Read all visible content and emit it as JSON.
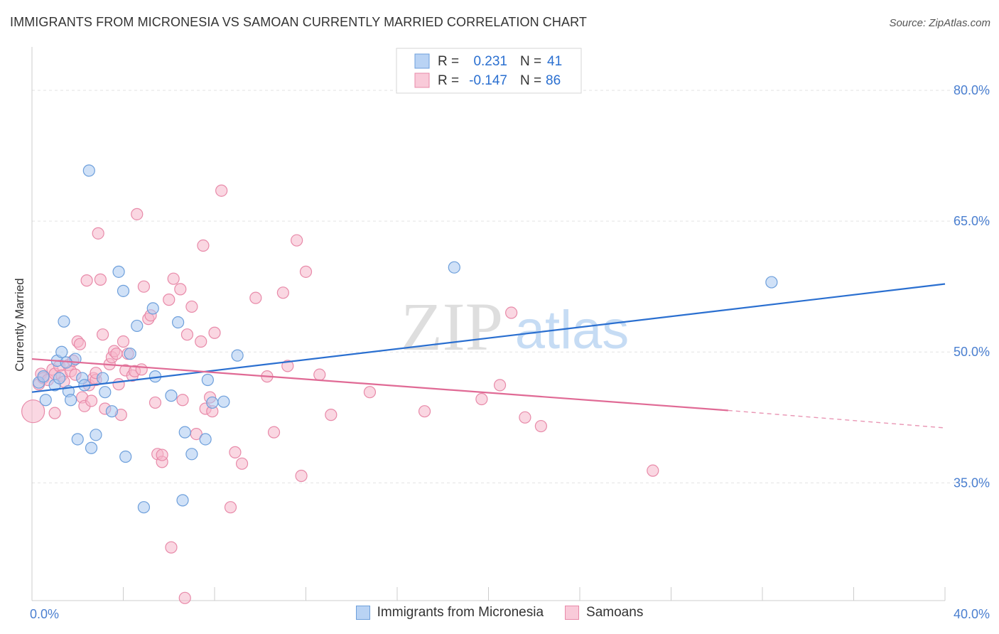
{
  "title": "IMMIGRANTS FROM MICRONESIA VS SAMOAN CURRENTLY MARRIED CORRELATION CHART",
  "source": "Source: ZipAtlas.com",
  "watermark": {
    "zip": "ZIP",
    "atlas": "atlas"
  },
  "colors": {
    "blue_fill": "#a9c8f0",
    "blue_stroke": "#6d9fdb",
    "blue_line": "#2a6fd0",
    "pink_fill": "#f6b6cb",
    "pink_stroke": "#e88aa9",
    "pink_line": "#e06a95",
    "tick_label": "#4a7fd0",
    "grid": "#e3e3e3"
  },
  "legend_box": {
    "rows": [
      {
        "r_label": "R =",
        "r_value": "0.231",
        "n_label": "N =",
        "n_value": "41",
        "color": "blue"
      },
      {
        "r_label": "R =",
        "r_value": "-0.147",
        "n_label": "N =",
        "n_value": "86",
        "color": "pink"
      }
    ]
  },
  "bottom_legend": [
    {
      "label": "Immigrants from Micronesia",
      "color": "blue"
    },
    {
      "label": "Samoans",
      "color": "pink"
    }
  ],
  "chart_data": {
    "type": "scatter",
    "title": "IMMIGRANTS FROM MICRONESIA VS SAMOAN CURRENTLY MARRIED CORRELATION CHART",
    "xlabel": "",
    "ylabel": "Currently Married",
    "xlim": [
      0,
      40
    ],
    "ylim": [
      21.5,
      84
    ],
    "x_tick_labels": [
      {
        "value": 0,
        "label": "0.0%"
      },
      {
        "value": 40,
        "label": "40.0%"
      }
    ],
    "y_tick_labels": [
      {
        "value": 80,
        "label": "80.0%"
      },
      {
        "value": 65,
        "label": "65.0%"
      },
      {
        "value": 50,
        "label": "50.0%"
      },
      {
        "value": 35,
        "label": "35.0%"
      }
    ],
    "grid": true,
    "legend_position": "top-center",
    "series": [
      {
        "name": "Immigrants from Micronesia",
        "color": "blue",
        "points": [
          [
            0.3,
            46.5
          ],
          [
            0.5,
            47.2
          ],
          [
            0.6,
            44.5
          ],
          [
            1.0,
            46.2
          ],
          [
            1.1,
            49.0
          ],
          [
            1.2,
            47.0
          ],
          [
            1.3,
            50.0
          ],
          [
            1.4,
            53.5
          ],
          [
            1.6,
            45.5
          ],
          [
            1.7,
            44.5
          ],
          [
            1.9,
            49.2
          ],
          [
            2.0,
            40.0
          ],
          [
            2.2,
            47.0
          ],
          [
            2.3,
            46.2
          ],
          [
            2.5,
            70.8
          ],
          [
            2.6,
            39.0
          ],
          [
            2.8,
            40.5
          ],
          [
            3.1,
            47.0
          ],
          [
            3.2,
            45.4
          ],
          [
            3.5,
            43.2
          ],
          [
            3.8,
            59.2
          ],
          [
            4.0,
            57.0
          ],
          [
            4.1,
            38.0
          ],
          [
            4.3,
            49.8
          ],
          [
            4.6,
            53.0
          ],
          [
            4.9,
            32.2
          ],
          [
            5.3,
            55.0
          ],
          [
            5.4,
            47.2
          ],
          [
            6.1,
            45.0
          ],
          [
            6.4,
            53.4
          ],
          [
            6.6,
            33.0
          ],
          [
            6.7,
            40.8
          ],
          [
            7.0,
            38.3
          ],
          [
            7.6,
            40.0
          ],
          [
            7.7,
            46.8
          ],
          [
            7.9,
            44.2
          ],
          [
            8.4,
            44.3
          ],
          [
            9.0,
            49.6
          ],
          [
            18.5,
            59.7
          ],
          [
            32.4,
            58.0
          ],
          [
            1.5,
            48.8
          ]
        ],
        "trend": {
          "x": [
            0,
            40
          ],
          "y": [
            45.4,
            57.8
          ]
        }
      },
      {
        "name": "Samoans",
        "color": "pink",
        "points": [
          [
            0.05,
            43.2
          ],
          [
            0.3,
            46.3
          ],
          [
            0.4,
            47.5
          ],
          [
            0.5,
            47.0
          ],
          [
            0.7,
            46.8
          ],
          [
            0.9,
            48.0
          ],
          [
            1.0,
            47.5
          ],
          [
            1.2,
            48.4
          ],
          [
            1.3,
            47.3
          ],
          [
            1.4,
            46.6
          ],
          [
            1.6,
            48.5
          ],
          [
            1.7,
            47.8
          ],
          [
            1.8,
            49.0
          ],
          [
            1.9,
            47.4
          ],
          [
            2.0,
            51.2
          ],
          [
            2.1,
            50.9
          ],
          [
            2.2,
            44.8
          ],
          [
            2.3,
            43.8
          ],
          [
            2.4,
            58.2
          ],
          [
            2.5,
            46.2
          ],
          [
            2.6,
            44.4
          ],
          [
            2.7,
            47.0
          ],
          [
            2.8,
            46.8
          ],
          [
            2.9,
            63.6
          ],
          [
            3.0,
            58.3
          ],
          [
            3.1,
            52.0
          ],
          [
            3.2,
            43.5
          ],
          [
            3.4,
            48.6
          ],
          [
            3.5,
            49.4
          ],
          [
            3.6,
            50.1
          ],
          [
            3.7,
            49.8
          ],
          [
            3.8,
            46.3
          ],
          [
            3.9,
            42.8
          ],
          [
            4.0,
            51.2
          ],
          [
            4.1,
            47.9
          ],
          [
            4.2,
            49.8
          ],
          [
            4.4,
            47.3
          ],
          [
            4.5,
            47.8
          ],
          [
            4.6,
            65.8
          ],
          [
            4.8,
            48.0
          ],
          [
            4.9,
            57.5
          ],
          [
            5.1,
            53.8
          ],
          [
            5.2,
            54.2
          ],
          [
            5.4,
            44.2
          ],
          [
            5.5,
            38.3
          ],
          [
            5.7,
            37.4
          ],
          [
            6.0,
            56.0
          ],
          [
            6.1,
            27.6
          ],
          [
            6.2,
            58.4
          ],
          [
            6.5,
            57.2
          ],
          [
            6.6,
            44.5
          ],
          [
            6.8,
            52.0
          ],
          [
            7.0,
            55.2
          ],
          [
            7.2,
            40.6
          ],
          [
            7.4,
            51.2
          ],
          [
            7.5,
            62.2
          ],
          [
            7.6,
            43.5
          ],
          [
            7.8,
            44.8
          ],
          [
            7.9,
            43.2
          ],
          [
            8.0,
            52.2
          ],
          [
            8.3,
            68.5
          ],
          [
            8.7,
            32.2
          ],
          [
            8.9,
            38.5
          ],
          [
            9.2,
            37.2
          ],
          [
            9.8,
            56.2
          ],
          [
            10.3,
            47.2
          ],
          [
            10.6,
            40.8
          ],
          [
            11.0,
            56.8
          ],
          [
            11.2,
            48.4
          ],
          [
            11.6,
            62.8
          ],
          [
            11.8,
            35.8
          ],
          [
            12.0,
            59.2
          ],
          [
            12.6,
            47.4
          ],
          [
            13.1,
            42.8
          ],
          [
            14.8,
            45.4
          ],
          [
            17.2,
            43.2
          ],
          [
            19.7,
            44.6
          ],
          [
            20.5,
            46.2
          ],
          [
            21.0,
            54.5
          ],
          [
            21.6,
            42.5
          ],
          [
            22.3,
            41.5
          ],
          [
            27.2,
            36.4
          ],
          [
            6.7,
            21.8
          ],
          [
            1.0,
            43.0
          ],
          [
            2.8,
            47.6
          ],
          [
            5.7,
            38.2
          ]
        ],
        "trend": {
          "x": [
            0,
            30.5
          ],
          "y": [
            49.2,
            43.3
          ]
        },
        "trend_dashed": {
          "x": [
            30.5,
            40
          ],
          "y": [
            43.3,
            41.3
          ]
        }
      }
    ]
  }
}
